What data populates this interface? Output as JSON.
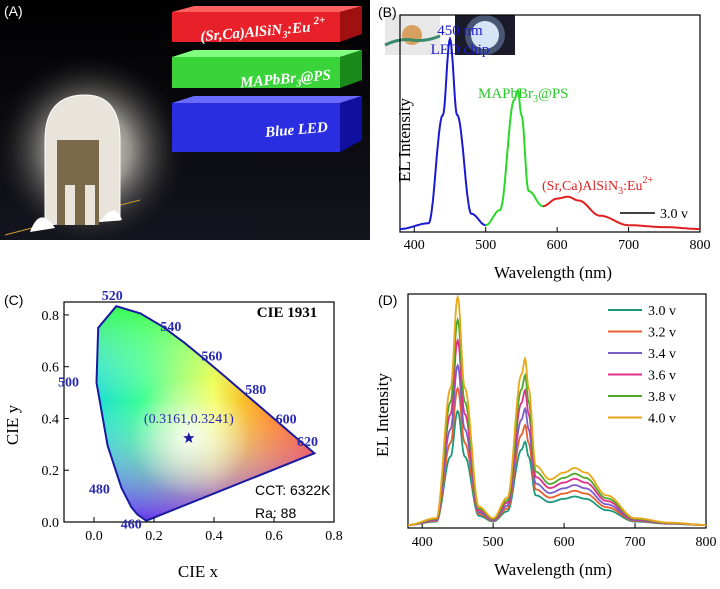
{
  "panel_labels": {
    "a": "(A)",
    "b": "(B)",
    "c": "(C)",
    "d": "(D)"
  },
  "panel_a": {
    "layers": [
      {
        "label": "(Sr,Ca)AlSiN",
        "sub": "3",
        "tail": ":Eu ",
        "sup": "2+",
        "color": "#e8202a"
      },
      {
        "label": "MAPbBr",
        "sub": "3",
        "tail": "@PS",
        "sup": "",
        "color": "#3ad33a"
      },
      {
        "label": "Blue LED",
        "sub": "",
        "tail": "",
        "sup": "",
        "color": "#2a2ee0"
      }
    ]
  },
  "panel_b": {
    "ylabel": "EL Intensity",
    "xlabel": "Wavelength (nm)",
    "xticks": [
      "400",
      "500",
      "600",
      "700",
      "800"
    ],
    "annot_blue_1": "450 nm",
    "annot_blue_2": "LED chip",
    "annot_green": "MAPbBr",
    "annot_green_sub": "3",
    "annot_green_tail": "@PS",
    "annot_red": "(Sr,Ca)AlSiN",
    "annot_red_sub": "3",
    "annot_red_tail": ":Eu",
    "annot_red_sup": "2+",
    "legend": "3.0 v"
  },
  "panel_c": {
    "title": "CIE 1931",
    "xlabel": "CIE x",
    "ylabel": "CIE y",
    "xticks": [
      "0.0",
      "0.2",
      "0.4",
      "0.6",
      "0.8"
    ],
    "yticks": [
      "0.0",
      "0.2",
      "0.4",
      "0.6",
      "0.8"
    ],
    "wavelength_labels": [
      "460",
      "480",
      "500",
      "520",
      "540",
      "560",
      "580",
      "600",
      "620"
    ],
    "point_label": "(0.3161,0.3241)",
    "cct": "CCT: 6322K",
    "ra": "Ra: 88"
  },
  "panel_d": {
    "ylabel": "EL Intensity",
    "xlabel": "Wavelength (nm)",
    "xticks": [
      "400",
      "500",
      "600",
      "700",
      "800"
    ],
    "legend": [
      "3.0 v",
      "3.2 v",
      "3.4 v",
      "3.6 v",
      "3.8 v",
      "4.0 v"
    ]
  },
  "chart_data": [
    {
      "type": "line",
      "panel": "B",
      "xlabel": "Wavelength (nm)",
      "ylabel": "EL Intensity",
      "xlim": [
        380,
        800
      ],
      "series": [
        {
          "name": "3.0 v",
          "x": [
            380,
            420,
            440,
            450,
            460,
            480,
            500,
            520,
            540,
            545,
            550,
            560,
            580,
            600,
            615,
            630,
            660,
            700,
            750,
            800
          ],
          "y": [
            0,
            0.03,
            0.6,
            1.0,
            0.6,
            0.08,
            0.02,
            0.1,
            0.68,
            0.73,
            0.6,
            0.2,
            0.12,
            0.16,
            0.17,
            0.15,
            0.07,
            0.02,
            0.01,
            0
          ]
        }
      ],
      "segment_colors": {
        "blue": [
          380,
          500
        ],
        "green": [
          500,
          580
        ],
        "red": [
          580,
          800
        ]
      }
    },
    {
      "type": "scatter",
      "panel": "C",
      "title": "CIE 1931",
      "xlabel": "CIE x",
      "ylabel": "CIE y",
      "xlim": [
        -0.1,
        0.8
      ],
      "ylim": [
        0,
        0.85
      ],
      "points": [
        {
          "x": 0.3161,
          "y": 0.3241
        }
      ],
      "locus": [
        [
          0.1741,
          0.005
        ],
        [
          0.144,
          0.0297
        ],
        [
          0.1241,
          0.0578
        ],
        [
          0.0913,
          0.1327
        ],
        [
          0.0454,
          0.295
        ],
        [
          0.0082,
          0.5384
        ],
        [
          0.0139,
          0.7502
        ],
        [
          0.0743,
          0.8338
        ],
        [
          0.1547,
          0.8059
        ],
        [
          0.2296,
          0.7543
        ],
        [
          0.3016,
          0.6923
        ],
        [
          0.3731,
          0.6245
        ],
        [
          0.4441,
          0.5547
        ],
        [
          0.5125,
          0.4866
        ],
        [
          0.5752,
          0.4242
        ],
        [
          0.627,
          0.3725
        ],
        [
          0.6658,
          0.334
        ],
        [
          0.7347,
          0.2653
        ]
      ],
      "wavelength_positions": [
        {
          "label": "460",
          "x": 0.144,
          "y": 0.0297
        },
        {
          "label": "480",
          "x": 0.0913,
          "y": 0.1327
        },
        {
          "label": "500",
          "x": 0.0082,
          "y": 0.5384
        },
        {
          "label": "520",
          "x": 0.0743,
          "y": 0.8338
        },
        {
          "label": "540",
          "x": 0.2296,
          "y": 0.7543
        },
        {
          "label": "560",
          "x": 0.3731,
          "y": 0.6245
        },
        {
          "label": "580",
          "x": 0.5125,
          "y": 0.4866
        },
        {
          "label": "600",
          "x": 0.627,
          "y": 0.3725
        },
        {
          "label": "620",
          "x": 0.6915,
          "y": 0.3083
        }
      ]
    },
    {
      "type": "line",
      "panel": "D",
      "xlabel": "Wavelength (nm)",
      "ylabel": "EL Intensity",
      "xlim": [
        380,
        800
      ],
      "x": [
        380,
        420,
        440,
        450,
        460,
        480,
        500,
        520,
        540,
        545,
        550,
        560,
        580,
        600,
        615,
        630,
        660,
        700,
        750,
        800
      ],
      "series": [
        {
          "name": "3.0 v",
          "color": "#1a9a7a",
          "scale": 0.5
        },
        {
          "name": "3.2 v",
          "color": "#e8602c",
          "scale": 0.6
        },
        {
          "name": "3.4 v",
          "color": "#7a5cc8",
          "scale": 0.7
        },
        {
          "name": "3.6 v",
          "color": "#e0308a",
          "scale": 0.81
        },
        {
          "name": "3.8 v",
          "color": "#4fa82a",
          "scale": 0.9
        },
        {
          "name": "4.0 v",
          "color": "#e8a81a",
          "scale": 1.0
        }
      ],
      "base_profile": [
        0,
        0.03,
        0.6,
        1.0,
        0.6,
        0.08,
        0.03,
        0.12,
        0.66,
        0.73,
        0.6,
        0.26,
        0.2,
        0.23,
        0.25,
        0.23,
        0.13,
        0.03,
        0.01,
        0
      ]
    }
  ]
}
